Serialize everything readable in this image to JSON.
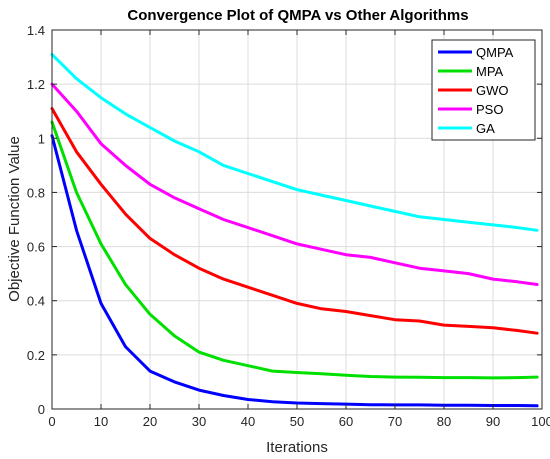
{
  "chart_data": {
    "type": "line",
    "title": "Convergence Plot of QMPA vs Other Algorithms",
    "xlabel": "Iterations",
    "ylabel": "Objective Function Value",
    "xlim": [
      0,
      100
    ],
    "ylim": [
      0,
      1.4
    ],
    "xticks": [
      0,
      10,
      20,
      30,
      40,
      50,
      60,
      70,
      80,
      90,
      100
    ],
    "yticks": [
      0,
      0.2,
      0.4,
      0.6,
      0.8,
      1,
      1.2,
      1.4
    ],
    "ytick_labels": [
      "0",
      "0.2",
      "0.4",
      "0.6",
      "0.8",
      "1",
      "1.2",
      "1.4"
    ],
    "grid": true,
    "legend_position": "top-right",
    "x": [
      0,
      5,
      10,
      15,
      20,
      25,
      30,
      35,
      40,
      45,
      50,
      55,
      60,
      65,
      70,
      75,
      80,
      85,
      90,
      95,
      99
    ],
    "series": [
      {
        "name": "QMPA",
        "color": "#0000ff",
        "values": [
          1.01,
          0.66,
          0.39,
          0.23,
          0.14,
          0.1,
          0.07,
          0.05,
          0.035,
          0.027,
          0.022,
          0.02,
          0.018,
          0.016,
          0.015,
          0.015,
          0.014,
          0.014,
          0.013,
          0.013,
          0.012
        ]
      },
      {
        "name": "MPA",
        "color": "#00e000",
        "values": [
          1.06,
          0.8,
          0.61,
          0.46,
          0.35,
          0.27,
          0.21,
          0.18,
          0.16,
          0.14,
          0.135,
          0.13,
          0.125,
          0.12,
          0.118,
          0.117,
          0.116,
          0.116,
          0.115,
          0.116,
          0.118
        ]
      },
      {
        "name": "GWO",
        "color": "#ff0000",
        "values": [
          1.11,
          0.95,
          0.83,
          0.72,
          0.63,
          0.57,
          0.52,
          0.48,
          0.45,
          0.42,
          0.39,
          0.37,
          0.36,
          0.345,
          0.33,
          0.325,
          0.31,
          0.305,
          0.3,
          0.29,
          0.28
        ]
      },
      {
        "name": "PSO",
        "color": "#ff00ff",
        "values": [
          1.2,
          1.1,
          0.98,
          0.9,
          0.83,
          0.78,
          0.74,
          0.7,
          0.67,
          0.64,
          0.61,
          0.59,
          0.57,
          0.56,
          0.54,
          0.52,
          0.51,
          0.5,
          0.48,
          0.47,
          0.46
        ]
      },
      {
        "name": "GA",
        "color": "#00ffff",
        "values": [
          1.31,
          1.22,
          1.15,
          1.09,
          1.04,
          0.99,
          0.95,
          0.9,
          0.87,
          0.84,
          0.81,
          0.79,
          0.77,
          0.75,
          0.73,
          0.71,
          0.7,
          0.69,
          0.68,
          0.67,
          0.66
        ]
      }
    ]
  }
}
